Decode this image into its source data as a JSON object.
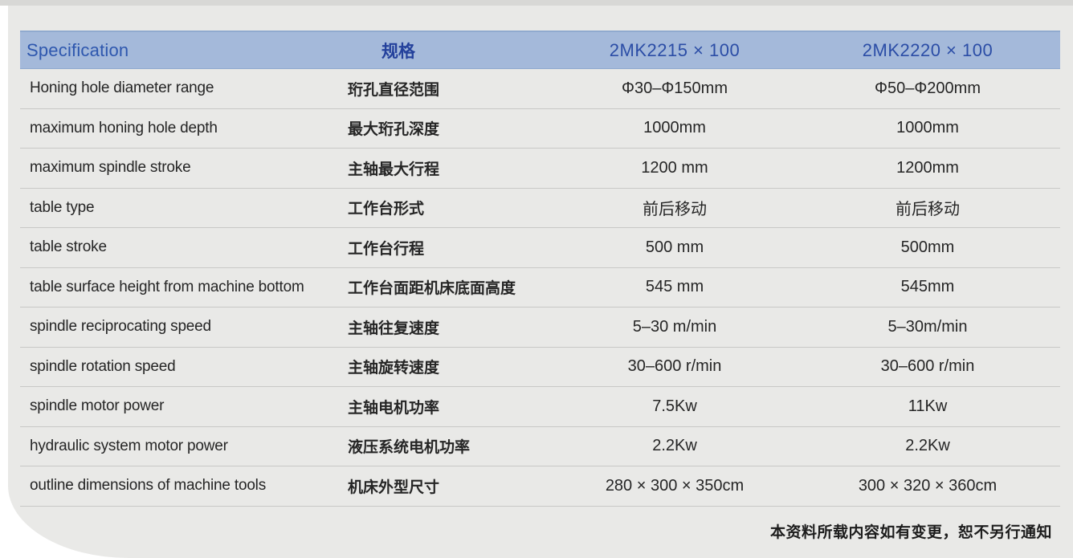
{
  "colors": {
    "header_band": "#a4b9da",
    "header_text_blue": "#2c51a8",
    "panel_background": "#e9e9e7"
  },
  "table": {
    "header": {
      "en": "Specification",
      "zh": "规格",
      "model1": "2MK2215 × 100",
      "model2": "2MK2220 × 100"
    },
    "rows": [
      {
        "en": "Honing hole diameter range",
        "zh": "珩孔直径范围",
        "m1": "Φ30–Φ150mm",
        "m2": "Φ50–Φ200mm"
      },
      {
        "en": "maximum honing hole depth",
        "zh": "最大珩孔深度",
        "m1": "1000mm",
        "m2": "1000mm"
      },
      {
        "en": "maximum spindle stroke",
        "zh": "主轴最大行程",
        "m1": "1200 mm",
        "m2": "1200mm"
      },
      {
        "en": "table type",
        "zh": "工作台形式",
        "m1": "前后移动",
        "m2": "前后移动"
      },
      {
        "en": "table stroke",
        "zh": "工作台行程",
        "m1": "500 mm",
        "m2": "500mm"
      },
      {
        "en": "table surface height from machine bottom",
        "zh": "工作台面距机床底面高度",
        "m1": "545 mm",
        "m2": "545mm"
      },
      {
        "en": "spindle reciprocating speed",
        "zh": "主轴往复速度",
        "m1": "5–30 m/min",
        "m2": "5–30m/min"
      },
      {
        "en": "spindle rotation speed",
        "zh": "主轴旋转速度",
        "m1": "30–600 r/min",
        "m2": "30–600 r/min"
      },
      {
        "en": "spindle motor power",
        "zh": "主轴电机功率",
        "m1": "7.5Kw",
        "m2": "11Kw"
      },
      {
        "en": "hydraulic system motor power",
        "zh": "液压系统电机功率",
        "m1": "2.2Kw",
        "m2": "2.2Kw"
      },
      {
        "en": "outline dimensions of machine tools",
        "zh": "机床外型尺寸",
        "m1": "280 × 300 × 350cm",
        "m2": "300 × 320 × 360cm"
      }
    ]
  },
  "footer": {
    "note": "本资料所载内容如有变更，恕不另行通知"
  }
}
